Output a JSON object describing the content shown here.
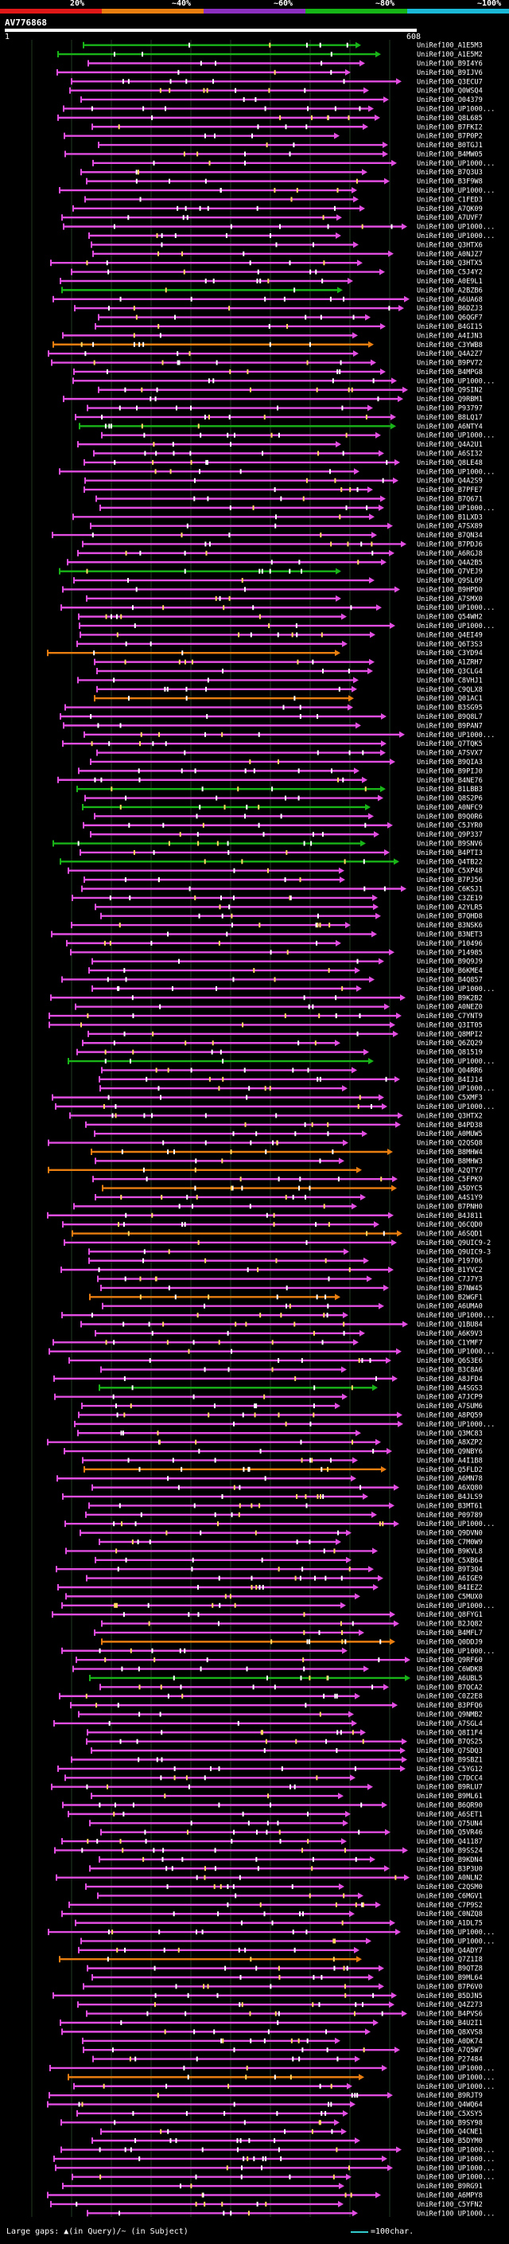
{
  "identity_scale": [
    {
      "label": "20%",
      "color": "#e01818"
    },
    {
      "label": "~40%",
      "color": "#e87d10"
    },
    {
      "label": "~60%",
      "color": "#8a2fc0"
    },
    {
      "label": "~80%",
      "color": "#17b417"
    },
    {
      "label": "~100%",
      "color": "#1cb8d8"
    }
  ],
  "query": {
    "title": "AV776868",
    "start": "1",
    "end": "608"
  },
  "colors": {
    "pink": "#e14ee1",
    "green": "#18b418",
    "orange": "#e87d10",
    "grid": "#1f3a1f",
    "white": "#ffffff"
  },
  "hits": [
    {
      "label": "UniRef100_A1E5M3",
      "color": "green"
    },
    {
      "label": "UniRef100_A1E5M2",
      "color": "green"
    },
    {
      "label": "UniRef100_B9I4Y6",
      "color": "pink"
    },
    {
      "label": "UniRef100_B9IJV6",
      "color": "pink"
    },
    {
      "label": "UniRef100_Q3ECU7",
      "color": "pink"
    },
    {
      "label": "UniRef100_Q0WSQ4",
      "color": "pink"
    },
    {
      "label": "UniRef100_O04379",
      "color": "pink"
    },
    {
      "label": "UniRef100_UP1000...",
      "color": "pink"
    },
    {
      "label": "UniRef100_Q8L685",
      "color": "pink"
    },
    {
      "label": "UniRef100_B7FKI2",
      "color": "pink"
    },
    {
      "label": "UniRef100_B7P0P2",
      "color": "pink"
    },
    {
      "label": "UniRef100_B0TGJ1",
      "color": "pink"
    },
    {
      "label": "UniRef100_B4MW05",
      "color": "pink"
    },
    {
      "label": "UniRef100_UP1000...",
      "color": "pink"
    },
    {
      "label": "UniRef100_B7Q3U3",
      "color": "pink"
    },
    {
      "label": "UniRef100_B3F9W8",
      "color": "pink"
    },
    {
      "label": "UniRef100_UP1000...",
      "color": "pink"
    },
    {
      "label": "UniRef100_C1FED3",
      "color": "pink"
    },
    {
      "label": "UniRef100_A7QK09",
      "color": "pink"
    },
    {
      "label": "UniRef100_A7UVF7",
      "color": "pink"
    },
    {
      "label": "UniRef100_UP1000...",
      "color": "pink"
    },
    {
      "label": "UniRef100_UP1000...",
      "color": "pink"
    },
    {
      "label": "UniRef100_Q3HTX6",
      "color": "pink"
    },
    {
      "label": "UniRef100_A0NJZ7",
      "color": "pink"
    },
    {
      "label": "UniRef100_Q3HTX5",
      "color": "pink"
    },
    {
      "label": "UniRef100_C5J4Y2",
      "color": "pink"
    },
    {
      "label": "UniRef100_A0E9L1",
      "color": "pink"
    },
    {
      "label": "UniRef100_A2BZB6",
      "color": "green"
    },
    {
      "label": "UniRef100_A6UA68",
      "color": "pink"
    },
    {
      "label": "UniRef100_B6DZJ3",
      "color": "pink"
    },
    {
      "label": "UniRef100_Q6QGF7",
      "color": "pink"
    },
    {
      "label": "UniRef100_B4GI15",
      "color": "pink"
    },
    {
      "label": "UniRef100_A4IJN3",
      "color": "pink"
    },
    {
      "label": "UniRef100_C3YWB8",
      "color": "orange"
    },
    {
      "label": "UniRef100_Q4A2Z7",
      "color": "pink"
    },
    {
      "label": "UniRef100_B9PV72",
      "color": "pink"
    },
    {
      "label": "UniRef100_B4MPG8",
      "color": "pink"
    },
    {
      "label": "UniRef100_UP1000...",
      "color": "pink"
    },
    {
      "label": "UniRef100_Q9SIN2",
      "color": "pink"
    },
    {
      "label": "UniRef100_Q9RBM1",
      "color": "pink"
    },
    {
      "label": "UniRef100_P93797",
      "color": "pink"
    },
    {
      "label": "UniRef100_B8LQ17",
      "color": "pink"
    },
    {
      "label": "UniRef100_A6NTY4",
      "color": "green"
    },
    {
      "label": "UniRef100_UP1000...",
      "color": "pink"
    },
    {
      "label": "UniRef100_Q4A2U1",
      "color": "pink"
    },
    {
      "label": "UniRef100_A6SI32",
      "color": "pink"
    },
    {
      "label": "UniRef100_Q8LE48",
      "color": "pink"
    },
    {
      "label": "UniRef100_UP1000...",
      "color": "pink"
    },
    {
      "label": "UniRef100_Q4A2S9",
      "color": "pink"
    },
    {
      "label": "UniRef100_B7PFE7",
      "color": "pink"
    },
    {
      "label": "UniRef100_B7Q671",
      "color": "pink"
    },
    {
      "label": "UniRef100_UP1000...",
      "color": "pink"
    },
    {
      "label": "UniRef100_B1LXD3",
      "color": "pink"
    },
    {
      "label": "UniRef100_A7SX89",
      "color": "pink"
    },
    {
      "label": "UniRef100_B7QN34",
      "color": "pink"
    },
    {
      "label": "UniRef100_B7PDJ6",
      "color": "pink"
    },
    {
      "label": "UniRef100_A6RGJ8",
      "color": "pink"
    },
    {
      "label": "UniRef100_Q4A2B5",
      "color": "pink"
    },
    {
      "label": "UniRef100_Q7VEJ9",
      "color": "green"
    },
    {
      "label": "UniRef100_Q9SL09",
      "color": "pink"
    },
    {
      "label": "UniRef100_B9HPD0",
      "color": "pink"
    },
    {
      "label": "UniRef100_A7SMX0",
      "color": "pink"
    },
    {
      "label": "UniRef100_UP1000...",
      "color": "pink"
    },
    {
      "label": "UniRef100_Q54WH2",
      "color": "pink"
    },
    {
      "label": "UniRef100_UP1000...",
      "color": "pink"
    },
    {
      "label": "UniRef100_Q4EI49",
      "color": "pink"
    },
    {
      "label": "UniRef100_Q6T3S3",
      "color": "pink"
    },
    {
      "label": "UniRef100_C3YD94",
      "color": "orange"
    },
    {
      "label": "UniRef100_A1ZRH7",
      "color": "pink"
    },
    {
      "label": "UniRef100_Q3CLG4",
      "color": "pink"
    },
    {
      "label": "UniRef100_C8VHJ1",
      "color": "pink"
    },
    {
      "label": "UniRef100_C9QLX8",
      "color": "pink"
    },
    {
      "label": "UniRef100_Q01AC1",
      "color": "orange"
    },
    {
      "label": "UniRef100_B3SG95",
      "color": "pink"
    },
    {
      "label": "UniRef100_B9Q8L7",
      "color": "pink"
    },
    {
      "label": "UniRef100_B9PAN7",
      "color": "pink"
    },
    {
      "label": "UniRef100_UP1000...",
      "color": "pink"
    },
    {
      "label": "UniRef100_Q7TQK5",
      "color": "pink"
    },
    {
      "label": "UniRef100_A7SVX7",
      "color": "pink"
    },
    {
      "label": "UniRef100_B9QIA3",
      "color": "pink"
    },
    {
      "label": "UniRef100_B9PIJ0",
      "color": "pink"
    },
    {
      "label": "UniRef100_B4NE76",
      "color": "pink"
    },
    {
      "label": "UniRef100_B1LBB3",
      "color": "green"
    },
    {
      "label": "UniRef100_Q8S2P6",
      "color": "pink"
    },
    {
      "label": "UniRef100_A0NFC9",
      "color": "green"
    },
    {
      "label": "UniRef100_B9Q0R6",
      "color": "pink"
    },
    {
      "label": "UniRef100_C5JYR0",
      "color": "pink"
    },
    {
      "label": "UniRef100_Q9P337",
      "color": "pink"
    },
    {
      "label": "UniRef100_B9SNV6",
      "color": "green"
    },
    {
      "label": "UniRef100_B4PTI3",
      "color": "pink"
    },
    {
      "label": "UniRef100_Q4TB22",
      "color": "green"
    },
    {
      "label": "UniRef100_C5XP48",
      "color": "pink"
    },
    {
      "label": "UniRef100_B7PJ56",
      "color": "pink"
    },
    {
      "label": "UniRef100_C6KSJ1",
      "color": "pink"
    },
    {
      "label": "UniRef100_C3ZE19",
      "color": "pink"
    },
    {
      "label": "UniRef100_A2YLR5",
      "color": "pink"
    },
    {
      "label": "UniRef100_B7QHD8",
      "color": "pink"
    },
    {
      "label": "UniRef100_B3NSK6",
      "color": "pink"
    },
    {
      "label": "UniRef100_B3NET3",
      "color": "pink"
    },
    {
      "label": "UniRef100_P10496",
      "color": "pink"
    },
    {
      "label": "UniRef100_P14985",
      "color": "pink"
    },
    {
      "label": "UniRef100_B9Q9J9",
      "color": "pink"
    },
    {
      "label": "UniRef100_B6KME4",
      "color": "pink"
    },
    {
      "label": "UniRef100_B4Q857",
      "color": "pink"
    },
    {
      "label": "UniRef100_UP1000...",
      "color": "pink"
    },
    {
      "label": "UniRef100_B9K2B2",
      "color": "pink"
    },
    {
      "label": "UniRef100_A0NEZ0",
      "color": "pink"
    },
    {
      "label": "UniRef100_C7YNT9",
      "color": "pink"
    },
    {
      "label": "UniRef100_Q3IT05",
      "color": "pink"
    },
    {
      "label": "UniRef100_Q8MPI2",
      "color": "pink"
    },
    {
      "label": "UniRef100_Q6ZQ29",
      "color": "pink"
    },
    {
      "label": "UniRef100_Q81519",
      "color": "pink"
    },
    {
      "label": "UniRef100_UP1000...",
      "color": "green"
    },
    {
      "label": "UniRef100_Q04RR6",
      "color": "pink"
    },
    {
      "label": "UniRef100_B4IJ14",
      "color": "pink"
    },
    {
      "label": "UniRef100_UP1000...",
      "color": "pink"
    },
    {
      "label": "UniRef100_C5XMF3",
      "color": "pink"
    },
    {
      "label": "UniRef100_UP1000...",
      "color": "pink"
    },
    {
      "label": "UniRef100_Q3HTX2",
      "color": "pink"
    },
    {
      "label": "UniRef100_B4PD38",
      "color": "pink"
    },
    {
      "label": "UniRef100_A0MUW5",
      "color": "pink"
    },
    {
      "label": "UniRef100_Q2QSQ8",
      "color": "pink"
    },
    {
      "label": "UniRef100_B8MHW4",
      "color": "orange"
    },
    {
      "label": "UniRef100_B8MHW3",
      "color": "pink"
    },
    {
      "label": "UniRef100_A2QTY7",
      "color": "orange"
    },
    {
      "label": "UniRef100_C5FPK9",
      "color": "pink"
    },
    {
      "label": "UniRef100_A5DYC5",
      "color": "orange"
    },
    {
      "label": "UniRef100_A4S1Y9",
      "color": "pink"
    },
    {
      "label": "UniRef100_B7PNH0",
      "color": "pink"
    },
    {
      "label": "UniRef100_B4J811",
      "color": "pink"
    },
    {
      "label": "UniRef100_Q6CQD0",
      "color": "pink"
    },
    {
      "label": "UniRef100_A6SQD1",
      "color": "orange"
    },
    {
      "label": "UniRef100_Q9UIC9-2",
      "color": "pink"
    },
    {
      "label": "UniRef100_Q9UIC9-3",
      "color": "pink"
    },
    {
      "label": "UniRef100_P19706",
      "color": "pink"
    },
    {
      "label": "UniRef100_B1YVC2",
      "color": "pink"
    },
    {
      "label": "UniRef100_C7J7Y3",
      "color": "pink"
    },
    {
      "label": "UniRef100_B7NW45",
      "color": "pink"
    },
    {
      "label": "UniRef100_B2WGF1",
      "color": "orange"
    },
    {
      "label": "UniRef100_A6UMA0",
      "color": "pink"
    },
    {
      "label": "UniRef100_UP1000...",
      "color": "pink"
    },
    {
      "label": "UniRef100_Q1BU84",
      "color": "pink"
    },
    {
      "label": "UniRef100_A6K9V3",
      "color": "pink"
    },
    {
      "label": "UniRef100_C1YMF7",
      "color": "pink"
    },
    {
      "label": "UniRef100_UP1000...",
      "color": "pink"
    },
    {
      "label": "UniRef100_Q6S3E6",
      "color": "pink"
    },
    {
      "label": "UniRef100_B3C8A6",
      "color": "pink"
    },
    {
      "label": "UniRef100_A8JFD4",
      "color": "pink"
    },
    {
      "label": "UniRef100_A4SGS3",
      "color": "green"
    },
    {
      "label": "UniRef100_A7JCP9",
      "color": "pink"
    },
    {
      "label": "UniRef100_A7SUM6",
      "color": "pink"
    },
    {
      "label": "UniRef100_A8PQ59",
      "color": "pink"
    },
    {
      "label": "UniRef100_UP1000...",
      "color": "pink"
    },
    {
      "label": "UniRef100_Q3MC83",
      "color": "pink"
    },
    {
      "label": "UniRef100_A8XZP2",
      "color": "pink"
    },
    {
      "label": "UniRef100_Q9NBY6",
      "color": "pink"
    },
    {
      "label": "UniRef100_A4I1B8",
      "color": "pink"
    },
    {
      "label": "UniRef100_Q5FLD2",
      "color": "orange"
    },
    {
      "label": "UniRef100_A6MN78",
      "color": "pink"
    },
    {
      "label": "UniRef100_A6XQ80",
      "color": "pink"
    },
    {
      "label": "UniRef100_B4JLS9",
      "color": "pink"
    },
    {
      "label": "UniRef100_B3MT61",
      "color": "pink"
    },
    {
      "label": "UniRef100_P09789",
      "color": "pink"
    },
    {
      "label": "UniRef100_UP1000...",
      "color": "pink"
    },
    {
      "label": "UniRef100_Q9DVN0",
      "color": "pink"
    },
    {
      "label": "UniRef100_C7M0W9",
      "color": "pink"
    },
    {
      "label": "UniRef100_B9KVL8",
      "color": "pink"
    },
    {
      "label": "UniRef100_C5XB64",
      "color": "pink"
    },
    {
      "label": "UniRef100_B9T3Q4",
      "color": "pink"
    },
    {
      "label": "UniRef100_A6IGE9",
      "color": "pink"
    },
    {
      "label": "UniRef100_B4IEZ2",
      "color": "pink"
    },
    {
      "label": "UniRef100_C5MUX0",
      "color": "pink"
    },
    {
      "label": "UniRef100_UP1000...",
      "color": "pink"
    },
    {
      "label": "UniRef100_Q8FYG1",
      "color": "pink"
    },
    {
      "label": "UniRef100_B2JQ82",
      "color": "pink"
    },
    {
      "label": "UniRef100_B4MFL7",
      "color": "pink"
    },
    {
      "label": "UniRef100_Q0DDJ9",
      "color": "orange"
    },
    {
      "label": "UniRef100_UP1000...",
      "color": "pink"
    },
    {
      "label": "UniRef100_Q9RF60",
      "color": "pink"
    },
    {
      "label": "UniRef100_C6WDK8",
      "color": "pink"
    },
    {
      "label": "UniRef100_A6UBL5",
      "color": "green"
    },
    {
      "label": "UniRef100_B7QCA2",
      "color": "pink"
    },
    {
      "label": "UniRef100_C0Z2E8",
      "color": "pink"
    },
    {
      "label": "UniRef100_B3PFQ6",
      "color": "pink"
    },
    {
      "label": "UniRef100_Q9NMB2",
      "color": "pink"
    },
    {
      "label": "UniRef100_A7SGL4",
      "color": "pink"
    },
    {
      "label": "UniRef100_Q8I1F4",
      "color": "pink"
    },
    {
      "label": "UniRef100_B7QS25",
      "color": "pink"
    },
    {
      "label": "UniRef100_Q7SDQ3",
      "color": "pink"
    },
    {
      "label": "UniRef100_B9SBZ1",
      "color": "pink"
    },
    {
      "label": "UniRef100_C5YG12",
      "color": "pink"
    },
    {
      "label": "UniRef100_C7DCC4",
      "color": "pink"
    },
    {
      "label": "UniRef100_B9RLU7",
      "color": "pink"
    },
    {
      "label": "UniRef100_B9ML61",
      "color": "pink"
    },
    {
      "label": "UniRef100_B6QR90",
      "color": "pink"
    },
    {
      "label": "UniRef100_A6SET1",
      "color": "pink"
    },
    {
      "label": "UniRef100_Q75UN4",
      "color": "pink"
    },
    {
      "label": "UniRef100_Q5VR46",
      "color": "pink"
    },
    {
      "label": "UniRef100_Q41187",
      "color": "pink"
    },
    {
      "label": "UniRef100_B9SS24",
      "color": "pink"
    },
    {
      "label": "UniRef100_B9KDN4",
      "color": "pink"
    },
    {
      "label": "UniRef100_B3P3U0",
      "color": "pink"
    },
    {
      "label": "UniRef100_A0NLN2",
      "color": "pink"
    },
    {
      "label": "UniRef100_C2QSM0",
      "color": "pink"
    },
    {
      "label": "UniRef100_C6MGV1",
      "color": "pink"
    },
    {
      "label": "UniRef100_C7P9S2",
      "color": "pink"
    },
    {
      "label": "UniRef100_C0NZQ8",
      "color": "pink"
    },
    {
      "label": "UniRef100_A1DL75",
      "color": "pink"
    },
    {
      "label": "UniRef100_UP1000...",
      "color": "pink"
    },
    {
      "label": "UniRef100_UP1000...",
      "color": "pink"
    },
    {
      "label": "UniRef100_Q4ADY7",
      "color": "pink"
    },
    {
      "label": "UniRef100_Q7Z1I8",
      "color": "orange"
    },
    {
      "label": "UniRef100_B9QTZ8",
      "color": "pink"
    },
    {
      "label": "UniRef100_B9ML64",
      "color": "pink"
    },
    {
      "label": "UniRef100_B7P6V0",
      "color": "pink"
    },
    {
      "label": "UniRef100_B5DJN5",
      "color": "pink"
    },
    {
      "label": "UniRef100_Q4Z273",
      "color": "pink"
    },
    {
      "label": "UniRef100_B4PVS6",
      "color": "pink"
    },
    {
      "label": "UniRef100_B4U2I1",
      "color": "pink"
    },
    {
      "label": "UniRef100_Q8XVS8",
      "color": "pink"
    },
    {
      "label": "UniRef100_A0DK74",
      "color": "pink"
    },
    {
      "label": "UniRef100_A7Q5W7",
      "color": "pink"
    },
    {
      "label": "UniRef100_P27484",
      "color": "pink"
    },
    {
      "label": "UniRef100_UP1000...",
      "color": "pink"
    },
    {
      "label": "UniRef100_UP1000...",
      "color": "orange"
    },
    {
      "label": "UniRef100_UP1000...",
      "color": "pink"
    },
    {
      "label": "UniRef100_B9RJT9",
      "color": "pink"
    },
    {
      "label": "UniRef100_Q4WQ64",
      "color": "pink"
    },
    {
      "label": "UniRef100_C5XSY5",
      "color": "pink"
    },
    {
      "label": "UniRef100_B9SY98",
      "color": "pink"
    },
    {
      "label": "UniRef100_Q4CNE1",
      "color": "pink"
    },
    {
      "label": "UniRef100_B5DYM0",
      "color": "pink"
    },
    {
      "label": "UniRef100_UP1000...",
      "color": "pink"
    },
    {
      "label": "UniRef100_UP1000...",
      "color": "pink"
    },
    {
      "label": "UniRef100_UP1000...",
      "color": "pink"
    },
    {
      "label": "UniRef100_UP1000...",
      "color": "pink"
    },
    {
      "label": "UniRef100_B9RG91",
      "color": "pink"
    },
    {
      "label": "UniRef100_A6MPY8",
      "color": "pink"
    },
    {
      "label": "UniRef100_C5YFN2",
      "color": "pink"
    },
    {
      "label": "UniRef100_UP1000...",
      "color": "pink"
    }
  ],
  "footer": {
    "large_gaps": "Large gaps: ▲(in Query)/~ (in Subject)",
    "scale": "=100char."
  }
}
